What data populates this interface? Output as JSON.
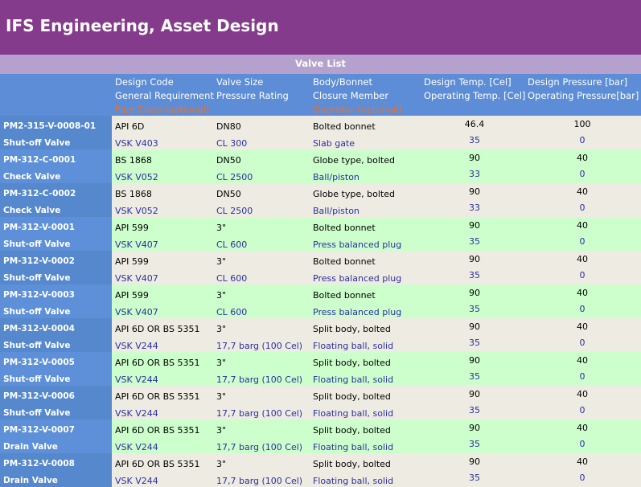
{
  "app": {
    "title": "IFS Engineering, Asset Design"
  },
  "list": {
    "title": "Valve List"
  },
  "columns": [
    {
      "line1": "Design Code",
      "line2": "General Requirement",
      "line3": "Pipe Class (optional)"
    },
    {
      "line1": "Valve Size",
      "line2": "Pressure Rating",
      "line3": ""
    },
    {
      "line1": "Body/Bonnet",
      "line2": "Closure Member",
      "line3": "Operator (optional)"
    },
    {
      "line1": "Design Temp. [Cel]",
      "line2": "Operating Temp. [Cel]",
      "line3": ""
    },
    {
      "line1": "Design Pressure [bar]",
      "line2": "Operating Pressure[bar]",
      "line3": ""
    }
  ],
  "rows": [
    {
      "id": "PM2-315-V-0008-01",
      "type": "Shut-off Valve",
      "design_code": "API 6D",
      "general_req": "VSK V403",
      "size": "DN80",
      "rating": "CL 300",
      "body": "Bolted bonnet",
      "closure": "Slab gate",
      "design_temp": "46.4",
      "op_temp": "35",
      "design_pres": "100",
      "op_pres": "0"
    },
    {
      "id": "PM-312-C-0001",
      "type": "Check Valve",
      "design_code": "BS 1868",
      "general_req": "VSK V052",
      "size": "DN50",
      "rating": "CL 2500",
      "body": "Globe type, bolted",
      "closure": "Ball/piston",
      "design_temp": "90",
      "op_temp": "33",
      "design_pres": "40",
      "op_pres": "0"
    },
    {
      "id": "PM-312-C-0002",
      "type": "Check Valve",
      "design_code": "BS 1868",
      "general_req": "VSK V052",
      "size": "DN50",
      "rating": "CL 2500",
      "body": "Globe type, bolted",
      "closure": "Ball/piston",
      "design_temp": "90",
      "op_temp": "33",
      "design_pres": "40",
      "op_pres": "0"
    },
    {
      "id": "PM-312-V-0001",
      "type": "Shut-off Valve",
      "design_code": "API 599",
      "general_req": "VSK V407",
      "size": "3\"",
      "rating": "CL 600",
      "body": "Bolted bonnet",
      "closure": "Press balanced plug",
      "design_temp": "90",
      "op_temp": "35",
      "design_pres": "40",
      "op_pres": "0"
    },
    {
      "id": "PM-312-V-0002",
      "type": "Shut-off Valve",
      "design_code": "API 599",
      "general_req": "VSK V407",
      "size": "3\"",
      "rating": "CL 600",
      "body": "Bolted bonnet",
      "closure": "Press balanced plug",
      "design_temp": "90",
      "op_temp": "35",
      "design_pres": "40",
      "op_pres": "0"
    },
    {
      "id": "PM-312-V-0003",
      "type": "Shut-off Valve",
      "design_code": "API 599",
      "general_req": "VSK V407",
      "size": "3\"",
      "rating": "CL 600",
      "body": "Bolted bonnet",
      "closure": "Press balanced plug",
      "design_temp": "90",
      "op_temp": "35",
      "design_pres": "40",
      "op_pres": "0"
    },
    {
      "id": "PM-312-V-0004",
      "type": "Shut-off Valve",
      "design_code": "API 6D OR BS 5351",
      "general_req": "VSK V244",
      "size": "3\"",
      "rating": "17,7 barg (100 Cel)",
      "body": "Split body, bolted",
      "closure": "Floating ball, solid",
      "design_temp": "90",
      "op_temp": "35",
      "design_pres": "40",
      "op_pres": "0"
    },
    {
      "id": "PM-312-V-0005",
      "type": "Shut-off Valve",
      "design_code": "API 6D OR BS 5351",
      "general_req": "VSK V244",
      "size": "3\"",
      "rating": "17,7 barg (100 Cel)",
      "body": "Split body, bolted",
      "closure": "Floating ball, solid",
      "design_temp": "90",
      "op_temp": "35",
      "design_pres": "40",
      "op_pres": "0"
    },
    {
      "id": "PM-312-V-0006",
      "type": "Shut-off Valve",
      "design_code": "API 6D OR BS 5351",
      "general_req": "VSK V244",
      "size": "3\"",
      "rating": "17,7 barg (100 Cel)",
      "body": "Split body, bolted",
      "closure": "Floating ball, solid",
      "design_temp": "90",
      "op_temp": "35",
      "design_pres": "40",
      "op_pres": "0"
    },
    {
      "id": "PM-312-V-0007",
      "type": "Drain Valve",
      "design_code": "API 6D OR BS 5351",
      "general_req": "VSK V244",
      "size": "3\"",
      "rating": "17,7 barg (100 Cel)",
      "body": "Split body, bolted",
      "closure": "Floating ball, solid",
      "design_temp": "90",
      "op_temp": "35",
      "design_pres": "40",
      "op_pres": "0"
    },
    {
      "id": "PM-312-V-0008",
      "type": "Drain Valve",
      "design_code": "API 6D OR BS 5351",
      "general_req": "VSK V244",
      "size": "3\"",
      "rating": "17,7 barg (100 Cel)",
      "body": "Split body, bolted",
      "closure": "Floating ball, solid",
      "design_temp": "90",
      "op_temp": "35",
      "design_pres": "40",
      "op_pres": "0"
    }
  ],
  "colors": {
    "header_bg": "#853b8c",
    "banner_bg": "#b5a1cd",
    "column_header_bg": "#5c8dd6",
    "optional_label": "#f07028",
    "row_alt_a": "#eeece2",
    "row_alt_b": "#ccffcc",
    "secondary_text": "#2b2f9e"
  }
}
